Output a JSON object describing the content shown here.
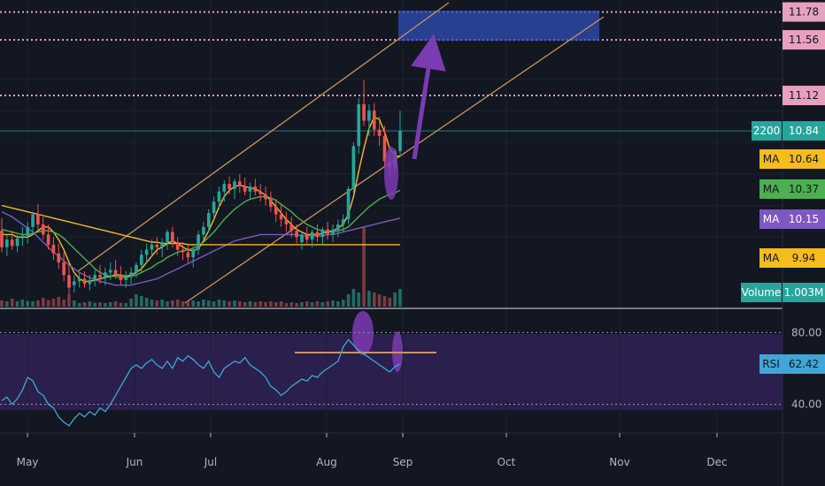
{
  "chart_data": [
    {
      "type": "candlestick",
      "title": "",
      "x_axis": {
        "ticks": [
          "May",
          "Jun",
          "Jul",
          "Aug",
          "Sep",
          "Oct",
          "Nov",
          "Dec"
        ]
      },
      "price_axis": {
        "ylim": [
          9.45,
          11.84
        ]
      },
      "candles": [
        [
          10.05,
          10.15,
          9.88,
          9.92
        ],
        [
          9.92,
          10.02,
          9.85,
          9.98
        ],
        [
          9.98,
          10.05,
          9.9,
          9.93
        ],
        [
          9.93,
          10.02,
          9.88,
          9.99
        ],
        [
          9.99,
          10.08,
          9.93,
          10.01
        ],
        [
          10.01,
          10.12,
          9.95,
          10.08
        ],
        [
          10.08,
          10.2,
          10.02,
          10.18
        ],
        [
          10.18,
          10.26,
          10.06,
          10.1
        ],
        [
          10.1,
          10.16,
          9.98,
          10.02
        ],
        [
          10.02,
          10.1,
          9.9,
          9.94
        ],
        [
          9.94,
          10.0,
          9.82,
          9.87
        ],
        [
          9.87,
          9.95,
          9.75,
          9.8
        ],
        [
          9.8,
          9.88,
          9.65,
          9.7
        ],
        [
          9.7,
          9.78,
          9.55,
          9.6
        ],
        [
          9.62,
          9.7,
          9.56,
          9.65
        ],
        [
          9.65,
          9.72,
          9.6,
          9.67
        ],
        [
          9.67,
          9.73,
          9.6,
          9.63
        ],
        [
          9.63,
          9.7,
          9.58,
          9.66
        ],
        [
          9.66,
          9.74,
          9.61,
          9.7
        ],
        [
          9.7,
          9.78,
          9.63,
          9.68
        ],
        [
          9.68,
          9.76,
          9.62,
          9.72
        ],
        [
          9.72,
          9.8,
          9.66,
          9.74
        ],
        [
          9.74,
          9.82,
          9.67,
          9.7
        ],
        [
          9.7,
          9.77,
          9.62,
          9.66
        ],
        [
          9.66,
          9.73,
          9.6,
          9.69
        ],
        [
          9.69,
          9.76,
          9.63,
          9.72
        ],
        [
          9.72,
          9.8,
          9.68,
          9.78
        ],
        [
          9.78,
          9.9,
          9.72,
          9.86
        ],
        [
          9.86,
          9.95,
          9.8,
          9.9
        ],
        [
          9.9,
          9.98,
          9.84,
          9.94
        ],
        [
          9.94,
          10.0,
          9.86,
          9.92
        ],
        [
          9.92,
          9.99,
          9.84,
          9.96
        ],
        [
          9.96,
          10.06,
          9.9,
          10.04
        ],
        [
          10.04,
          10.08,
          9.92,
          9.96
        ],
        [
          9.96,
          10.0,
          9.85,
          9.9
        ],
        [
          9.9,
          9.96,
          9.82,
          9.88
        ],
        [
          9.88,
          9.95,
          9.8,
          9.84
        ],
        [
          9.84,
          9.93,
          9.76,
          9.9
        ],
        [
          9.9,
          10.05,
          9.86,
          10.02
        ],
        [
          10.02,
          10.12,
          9.98,
          10.08
        ],
        [
          10.08,
          10.22,
          10.04,
          10.19
        ],
        [
          10.19,
          10.32,
          10.14,
          10.28
        ],
        [
          10.28,
          10.4,
          10.22,
          10.36
        ],
        [
          10.36,
          10.45,
          10.28,
          10.42
        ],
        [
          10.42,
          10.48,
          10.34,
          10.38
        ],
        [
          10.38,
          10.46,
          10.3,
          10.44
        ],
        [
          10.44,
          10.5,
          10.35,
          10.4
        ],
        [
          10.4,
          10.47,
          10.33,
          10.36
        ],
        [
          10.36,
          10.43,
          10.3,
          10.4
        ],
        [
          10.4,
          10.46,
          10.33,
          10.36
        ],
        [
          10.36,
          10.42,
          10.28,
          10.34
        ],
        [
          10.34,
          10.4,
          10.25,
          10.3
        ],
        [
          10.3,
          10.36,
          10.2,
          10.24
        ],
        [
          10.24,
          10.3,
          10.12,
          10.18
        ],
        [
          10.18,
          10.26,
          10.08,
          10.14
        ],
        [
          10.14,
          10.2,
          10.04,
          10.1
        ],
        [
          10.1,
          10.16,
          10.0,
          10.05
        ],
        [
          10.05,
          10.1,
          9.95,
          10.0
        ],
        [
          9.96,
          10.04,
          9.9,
          10.02
        ],
        [
          10.02,
          10.08,
          9.94,
          9.98
        ],
        [
          9.98,
          10.06,
          9.92,
          10.04
        ],
        [
          10.04,
          10.1,
          9.96,
          10.0
        ],
        [
          10.0,
          10.08,
          9.94,
          10.06
        ],
        [
          10.06,
          10.12,
          9.98,
          10.02
        ],
        [
          10.02,
          10.1,
          9.96,
          10.06
        ],
        [
          10.06,
          10.14,
          10.0,
          10.1
        ],
        [
          10.1,
          10.18,
          10.04,
          10.14
        ],
        [
          10.14,
          10.4,
          10.1,
          10.38
        ],
        [
          10.38,
          10.75,
          10.34,
          10.72
        ],
        [
          10.72,
          11.1,
          10.66,
          11.05
        ],
        [
          11.05,
          11.24,
          10.88,
          10.92
        ],
        [
          10.92,
          11.05,
          10.8,
          11.0
        ],
        [
          11.0,
          11.06,
          10.8,
          10.85
        ],
        [
          10.85,
          10.95,
          10.72,
          10.8
        ],
        [
          10.8,
          10.88,
          10.55,
          10.6
        ],
        [
          10.6,
          10.66,
          10.48,
          10.55
        ],
        [
          10.55,
          10.7,
          10.52,
          10.68
        ],
        [
          10.68,
          11.0,
          10.65,
          10.84
        ]
      ],
      "series": [
        {
          "name": "MA",
          "color": "#f5bc1e",
          "current": 10.64,
          "values": [
            10.02,
            10.02,
            10.02,
            10.0,
            10.0,
            10.0,
            10.02,
            10.05,
            10.08,
            10.08,
            10.04,
            9.98,
            9.9,
            9.8,
            9.72,
            9.67,
            9.65,
            9.65,
            9.66,
            9.67,
            9.68,
            9.69,
            9.7,
            9.7,
            9.69,
            9.7,
            9.72,
            9.75,
            9.8,
            9.85,
            9.9,
            9.92,
            9.95,
            9.97,
            9.95,
            9.92,
            9.9,
            9.89,
            9.91,
            9.97,
            10.05,
            10.14,
            10.24,
            10.32,
            10.37,
            10.4,
            10.41,
            10.4,
            10.39,
            10.38,
            10.36,
            10.33,
            10.29,
            10.24,
            10.19,
            10.14,
            10.1,
            10.06,
            10.04,
            10.02,
            10.02,
            10.02,
            10.03,
            10.04,
            10.05,
            10.07,
            10.1,
            10.18,
            10.32,
            10.52,
            10.7,
            10.86,
            10.95,
            10.93,
            10.83,
            10.7,
            10.64,
            10.64
          ]
        },
        {
          "name": "MA",
          "color": "#4caf50",
          "current": 10.37,
          "values": [
            10.06,
            10.05,
            10.04,
            10.03,
            10.02,
            10.02,
            10.03,
            10.04,
            10.05,
            10.05,
            10.04,
            10.02,
            9.99,
            9.95,
            9.91,
            9.87,
            9.83,
            9.79,
            9.75,
            9.72,
            9.7,
            9.69,
            9.69,
            9.68,
            9.68,
            9.69,
            9.7,
            9.72,
            9.74,
            9.76,
            9.79,
            9.81,
            9.84,
            9.86,
            9.88,
            9.89,
            9.9,
            9.91,
            9.93,
            9.96,
            10.0,
            10.04,
            10.09,
            10.14,
            10.18,
            10.22,
            10.25,
            10.28,
            10.3,
            10.31,
            10.32,
            10.32,
            10.31,
            10.29,
            10.26,
            10.23,
            10.2,
            10.16,
            10.13,
            10.1,
            10.08,
            10.06,
            10.05,
            10.04,
            10.04,
            10.05,
            10.06,
            10.08,
            10.12,
            10.16,
            10.2,
            10.24,
            10.27,
            10.3,
            10.32,
            10.34,
            10.35,
            10.37
          ]
        },
        {
          "name": "MA",
          "color": "#7e57c2",
          "current": 10.15,
          "values": [
            10.2,
            10.18,
            10.16,
            10.13,
            10.1,
            10.07,
            10.04,
            10.0,
            9.96,
            9.92,
            9.88,
            9.85,
            9.81,
            9.78,
            9.75,
            9.72,
            9.7,
            9.68,
            9.66,
            9.65,
            9.64,
            9.63,
            9.62,
            9.62,
            9.62,
            9.62,
            9.63,
            9.64,
            9.65,
            9.66,
            9.67,
            9.69,
            9.71,
            9.73,
            9.75,
            9.77,
            9.79,
            9.81,
            9.83,
            9.85,
            9.87,
            9.89,
            9.91,
            9.93,
            9.95,
            9.97,
            9.98,
            9.99,
            10.0,
            10.01,
            10.02,
            10.02,
            10.02,
            10.02,
            10.02,
            10.02,
            10.02,
            10.02,
            10.01,
            10.01,
            10.01,
            10.01,
            10.01,
            10.02,
            10.02,
            10.03,
            10.04,
            10.05,
            10.06,
            10.07,
            10.08,
            10.09,
            10.1,
            10.11,
            10.12,
            10.13,
            10.14,
            10.15
          ]
        },
        {
          "name": "MA",
          "color": "#f5bc1e",
          "current": 9.94,
          "values": [
            10.25,
            10.24,
            10.23,
            10.22,
            10.21,
            10.2,
            10.19,
            10.18,
            10.17,
            10.16,
            10.15,
            10.14,
            10.13,
            10.12,
            10.11,
            10.1,
            10.09,
            10.08,
            10.07,
            10.06,
            10.05,
            10.04,
            10.03,
            10.02,
            10.01,
            10.0,
            9.99,
            9.98,
            9.97,
            9.96,
            9.96,
            9.95,
            9.95,
            9.95,
            9.95,
            9.95,
            9.94,
            9.94,
            9.94,
            9.94,
            9.94,
            9.94,
            9.94,
            9.94,
            9.94,
            9.94,
            9.94,
            9.94,
            9.94,
            9.94,
            9.94,
            9.94,
            9.94,
            9.94,
            9.94,
            9.94,
            9.94,
            9.94,
            9.94,
            9.94,
            9.94,
            9.94,
            9.94,
            9.94,
            9.94,
            9.94,
            9.94,
            9.94,
            9.94,
            9.94,
            9.94,
            9.94,
            9.94,
            9.94,
            9.94,
            9.94,
            9.94,
            9.94
          ]
        }
      ],
      "volume": {
        "label": "Volume",
        "current": "1.003M",
        "values": [
          0.35,
          0.3,
          0.45,
          0.3,
          0.4,
          0.32,
          0.3,
          0.35,
          0.5,
          0.38,
          0.45,
          0.55,
          0.4,
          0.7,
          0.35,
          0.2,
          0.25,
          0.3,
          0.22,
          0.25,
          0.2,
          0.25,
          0.3,
          0.22,
          0.2,
          0.45,
          0.7,
          0.6,
          0.5,
          0.4,
          0.35,
          0.4,
          0.3,
          0.35,
          0.4,
          0.3,
          0.28,
          0.35,
          0.3,
          0.4,
          0.35,
          0.3,
          0.4,
          0.35,
          0.3,
          0.35,
          0.3,
          0.25,
          0.3,
          0.25,
          0.3,
          0.25,
          0.3,
          0.25,
          0.3,
          0.2,
          0.25,
          0.2,
          0.25,
          0.3,
          0.25,
          0.3,
          0.25,
          0.3,
          0.35,
          0.3,
          0.4,
          0.7,
          1.0,
          0.8,
          4.5,
          0.9,
          0.8,
          0.7,
          0.6,
          0.5,
          0.8,
          1.0
        ]
      },
      "rsi": {
        "label": "RSI",
        "current": 62.42,
        "ylim": [
          25,
          90
        ],
        "ticks": [
          80,
          40
        ],
        "values": [
          42,
          44,
          40,
          43,
          48,
          55,
          53,
          47,
          45,
          40,
          38,
          33,
          30,
          28,
          32,
          35,
          33,
          36,
          34,
          38,
          36,
          40,
          45,
          50,
          55,
          60,
          62,
          60,
          63,
          65,
          62,
          60,
          64,
          60,
          66,
          64,
          67,
          65,
          62,
          60,
          64,
          58,
          55,
          60,
          62,
          64,
          63,
          66,
          62,
          60,
          58,
          55,
          50,
          48,
          45,
          47,
          50,
          52,
          54,
          53,
          56,
          55,
          58,
          60,
          62,
          64,
          72,
          76,
          73,
          70,
          68,
          66,
          64,
          62,
          60,
          58,
          61,
          62.42
        ]
      },
      "levels": [
        {
          "value": 11.78,
          "label": "11.78",
          "color": "#e8a0bf"
        },
        {
          "value": 11.56,
          "label": "11.56",
          "color": "#e8a0bf"
        },
        {
          "value": 11.12,
          "label": "11.12",
          "color": "#e8a0bf"
        }
      ],
      "last_price": {
        "label": "2200",
        "value": 10.84,
        "color": "#26a69a"
      }
    }
  ]
}
